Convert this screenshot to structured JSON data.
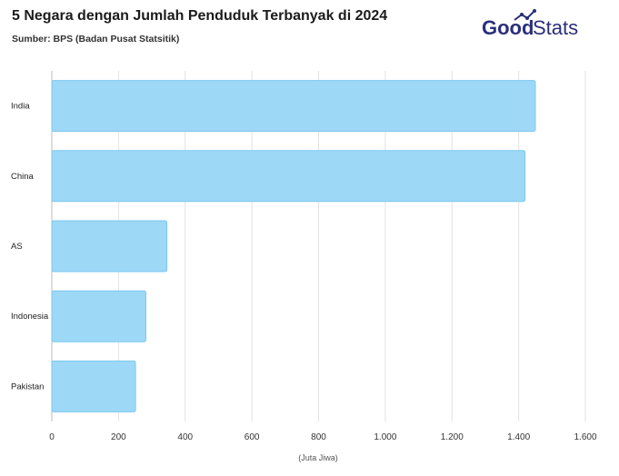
{
  "header": {
    "title": "5 Negara dengan Jumlah Penduduk Terbanyak di 2024",
    "subtitle": "Sumber: BPS (Badan Pusat Statsitik)"
  },
  "logo": {
    "text_bold": "Good",
    "text_light": "Stats",
    "color": "#2b2f7a",
    "icon": "trend-line-icon"
  },
  "chart_data": {
    "type": "bar",
    "orientation": "horizontal",
    "title": "5 Negara dengan Jumlah Penduduk Terbanyak di 2024",
    "subtitle": "Sumber: BPS (Badan Pusat Statsitik)",
    "categories": [
      "India",
      "China",
      "AS",
      "Indonesia",
      "Pakistan"
    ],
    "values": [
      1450,
      1419,
      345,
      282,
      251
    ],
    "xlabel": "(Juta Jiwa)",
    "ylabel": "",
    "xlim": [
      0,
      1600
    ],
    "ticks": [
      0,
      200,
      400,
      600,
      800,
      1000,
      1200,
      1400,
      1600
    ],
    "tick_labels": [
      "0",
      "200",
      "400",
      "600",
      "800",
      "1.000",
      "1.200",
      "1.400",
      "1.600"
    ],
    "grid": true,
    "legend": "none",
    "bar_color": "#9dd8f7",
    "bar_edge_color": "#7cc7f0"
  }
}
